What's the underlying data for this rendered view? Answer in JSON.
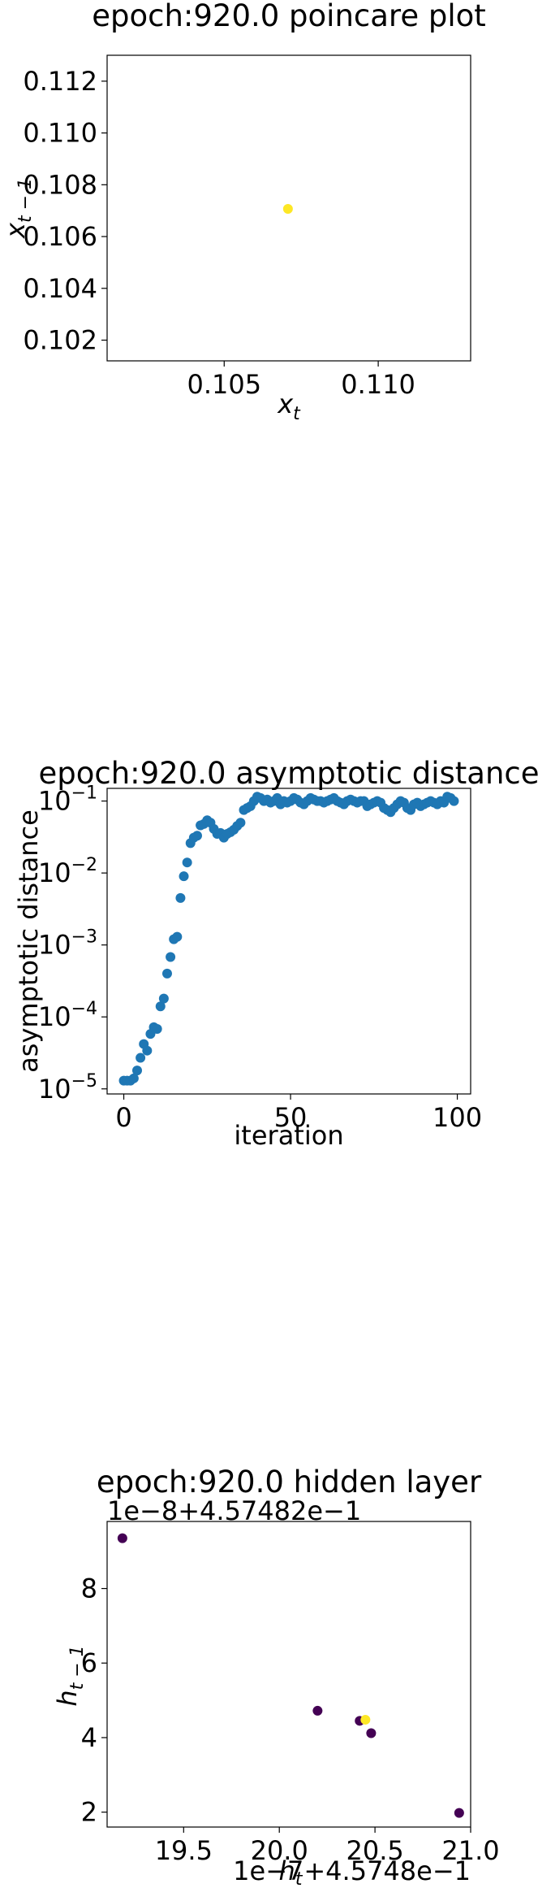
{
  "chart_data": [
    {
      "type": "scatter",
      "title": "epoch:920.0 poincare plot",
      "xlabel_base": "x",
      "xlabel_sub": "t",
      "ylabel_base": "x",
      "ylabel_sub": "t − 1",
      "xlim": [
        0.1012,
        0.113
      ],
      "ylim": [
        0.1012,
        0.113
      ],
      "xticks": [
        0.105,
        0.11
      ],
      "xtick_labels": [
        "0.105",
        "0.110"
      ],
      "yticks": [
        0.102,
        0.104,
        0.106,
        0.108,
        0.11,
        0.112
      ],
      "ytick_labels": [
        "0.102",
        "0.104",
        "0.106",
        "0.108",
        "0.110",
        "0.112"
      ],
      "points": [
        {
          "x": 0.10707,
          "y": 0.10707,
          "color": "#fde725"
        }
      ],
      "grid": false
    },
    {
      "type": "scatter",
      "title": "epoch:920.0 asymptotic distance",
      "xlabel": "iteration",
      "ylabel": "asymptotic distance",
      "yscale": "log",
      "xlim": [
        -5,
        104
      ],
      "ylim": [
        8.5e-06,
        0.15
      ],
      "xticks": [
        0,
        50,
        100
      ],
      "xtick_labels": [
        "0",
        "50",
        "100"
      ],
      "yticks": [
        1e-05,
        0.0001,
        0.001,
        0.01,
        0.1
      ],
      "ytick_labels": [
        {
          "base": "10",
          "exp": "−5"
        },
        {
          "base": "10",
          "exp": "−4"
        },
        {
          "base": "10",
          "exp": "−3"
        },
        {
          "base": "10",
          "exp": "−2"
        },
        {
          "base": "10",
          "exp": "−1"
        }
      ],
      "color": "#1f77b4",
      "x": [
        0,
        1,
        2,
        3,
        4,
        5,
        6,
        7,
        8,
        9,
        10,
        11,
        12,
        13,
        14,
        15,
        16,
        17,
        18,
        19,
        20,
        21,
        22,
        23,
        24,
        25,
        26,
        27,
        28,
        29,
        30,
        31,
        32,
        33,
        34,
        35,
        36,
        37,
        38,
        39,
        40,
        41,
        42,
        43,
        44,
        45,
        46,
        47,
        48,
        49,
        50,
        51,
        52,
        53,
        54,
        55,
        56,
        57,
        58,
        59,
        60,
        61,
        62,
        63,
        64,
        65,
        66,
        67,
        68,
        69,
        70,
        71,
        72,
        73,
        74,
        75,
        76,
        77,
        78,
        79,
        80,
        81,
        82,
        83,
        84,
        85,
        86,
        87,
        88,
        89,
        90,
        91,
        92,
        93,
        94,
        95,
        96,
        97,
        98,
        99
      ],
      "y": [
        1.3e-05,
        1.3e-05,
        1.3e-05,
        1.4e-05,
        1.8e-05,
        2.7e-05,
        4.2e-05,
        3.4e-05,
        5.8e-05,
        7.2e-05,
        6.8e-05,
        0.00014,
        0.00018,
        0.0004,
        0.00068,
        0.0012,
        0.0013,
        0.0045,
        0.009,
        0.014,
        0.026,
        0.031,
        0.033,
        0.046,
        0.048,
        0.054,
        0.05,
        0.041,
        0.035,
        0.036,
        0.031,
        0.035,
        0.037,
        0.04,
        0.045,
        0.05,
        0.075,
        0.08,
        0.085,
        0.1,
        0.115,
        0.11,
        0.1,
        0.105,
        0.095,
        0.1,
        0.11,
        0.09,
        0.1,
        0.095,
        0.1,
        0.11,
        0.105,
        0.095,
        0.09,
        0.1,
        0.11,
        0.105,
        0.1,
        0.1,
        0.095,
        0.1,
        0.105,
        0.11,
        0.1,
        0.095,
        0.09,
        0.1,
        0.105,
        0.1,
        0.095,
        0.1,
        0.1,
        0.085,
        0.09,
        0.095,
        0.1,
        0.095,
        0.08,
        0.075,
        0.07,
        0.08,
        0.09,
        0.1,
        0.095,
        0.08,
        0.075,
        0.09,
        0.095,
        0.085,
        0.09,
        0.095,
        0.1,
        0.095,
        0.09,
        0.1,
        0.095,
        0.115,
        0.11,
        0.1
      ],
      "grid": false
    },
    {
      "type": "scatter",
      "title": "epoch:920.0 hidden layer",
      "xlabel_base": "h",
      "xlabel_sub": "t",
      "ylabel_base": "h",
      "ylabel_sub": "t − 1",
      "x_offset_text": "1e−7+4.5748e−1",
      "y_offset_text": "1e−8+4.57482e−1",
      "xlim": [
        19.1,
        21.0
      ],
      "ylim": [
        1.6,
        9.8
      ],
      "xticks": [
        19.5,
        20.0,
        20.5,
        21.0
      ],
      "xtick_labels": [
        "19.5",
        "20.0",
        "20.5",
        "21.0"
      ],
      "yticks": [
        2,
        4,
        6,
        8
      ],
      "ytick_labels": [
        "2",
        "4",
        "6",
        "8"
      ],
      "points": [
        {
          "x": 19.18,
          "y": 9.35,
          "color": "#440154"
        },
        {
          "x": 20.2,
          "y": 4.72,
          "color": "#440154"
        },
        {
          "x": 20.42,
          "y": 4.45,
          "color": "#440154"
        },
        {
          "x": 20.48,
          "y": 4.12,
          "color": "#440154"
        },
        {
          "x": 20.94,
          "y": 1.98,
          "color": "#440154"
        },
        {
          "x": 20.45,
          "y": 4.48,
          "color": "#fde725"
        }
      ],
      "grid": false
    }
  ]
}
